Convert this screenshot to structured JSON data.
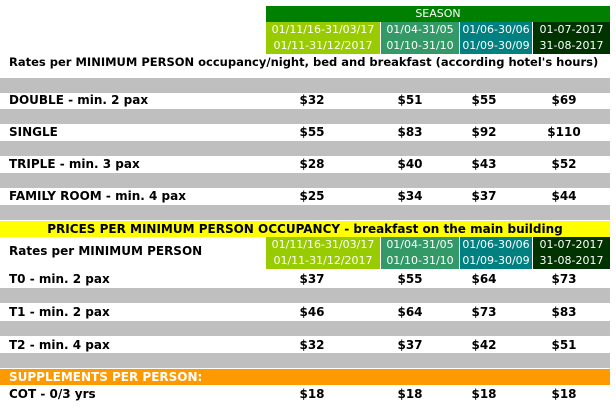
{
  "season_label": "SEASON",
  "colors": {
    "season_header": "#008000",
    "period_1": "#99cc00",
    "period_2": "#339966",
    "period_3": "#008080",
    "period_4": "#003300",
    "gray_band": "#bfbfbf",
    "yellow_band": "#ffff00",
    "orange_band": "#ff9900"
  },
  "periods": [
    {
      "line1": "01/11/16-31/03/17",
      "line2": "01/11-31/12/2017"
    },
    {
      "line1": "01/04-31/05",
      "line2": "01/10-31/10"
    },
    {
      "line1": "01/06-30/06",
      "line2": "01/09-30/09"
    },
    {
      "line1": "01-07-2017",
      "line2": "31-08-2017"
    }
  ],
  "section1": {
    "title": "Rates per MINIMUM PERSON occupancy/night, bed and breakfast (according hotel's hours)",
    "rows": [
      {
        "label": "DOUBLE - min. 2 pax",
        "prices": [
          "$32",
          "$51",
          "$55",
          "$69"
        ]
      },
      {
        "label": "SINGLE",
        "prices": [
          "$55",
          "$83",
          "$92",
          "$110"
        ]
      },
      {
        "label": "TRIPLE  - min. 3 pax",
        "prices": [
          "$28",
          "$40",
          "$43",
          "$52"
        ]
      },
      {
        "label": "FAMILY ROOM - min. 4 pax",
        "prices": [
          "$25",
          "$34",
          "$37",
          "$44"
        ]
      }
    ]
  },
  "section2": {
    "banner": "PRICES PER MINIMUM PERSON OCCUPANCY - breakfast on the main building",
    "title": "Rates per MINIMUM PERSON",
    "rows": [
      {
        "label": "T0 - min. 2 pax",
        "prices": [
          "$37",
          "$55",
          "$64",
          "$73"
        ]
      },
      {
        "label": "T1 - min. 2 pax",
        "prices": [
          "$46",
          "$64",
          "$73",
          "$83"
        ]
      },
      {
        "label": "T2 - min. 4 pax",
        "prices": [
          "$32",
          "$37",
          "$42",
          "$51"
        ]
      }
    ]
  },
  "supplements": {
    "banner": "SUPPLEMENTS PER PERSON:",
    "rows": [
      {
        "label": "COT - 0/3 yrs",
        "prices": [
          "$18",
          "$18",
          "$18",
          "$18"
        ]
      }
    ]
  }
}
